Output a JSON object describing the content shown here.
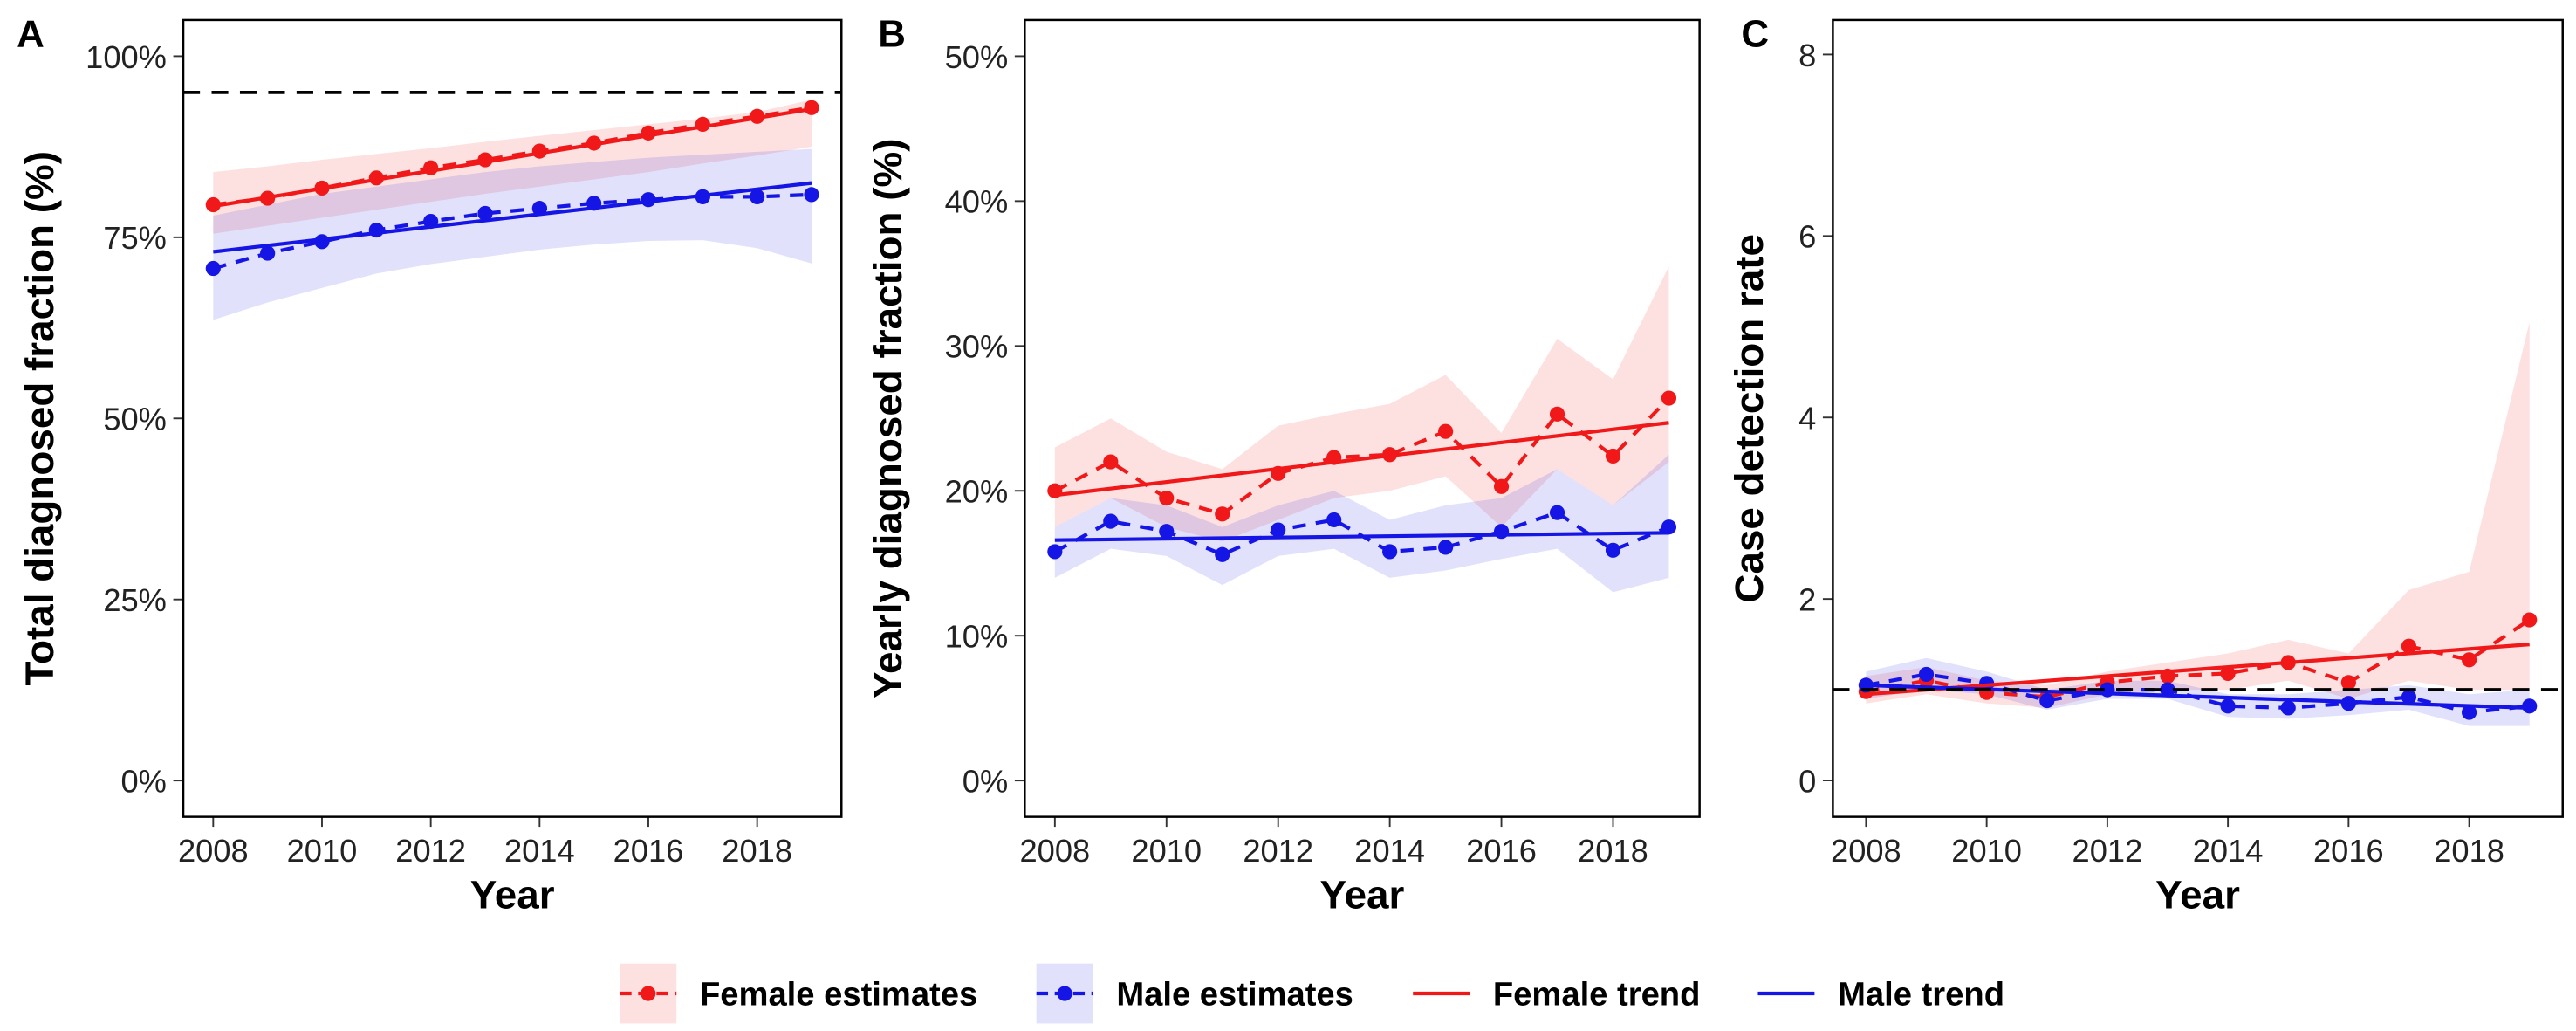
{
  "chart_data": [
    {
      "type": "line",
      "panel_label": "A",
      "xlabel": "Year",
      "ylabel": "Total diagnosed fraction  (%)",
      "x": [
        2008,
        2009,
        2010,
        2011,
        2012,
        2013,
        2014,
        2015,
        2016,
        2017,
        2018,
        2019
      ],
      "xlim": [
        2007.45,
        2019.55
      ],
      "xticks": [
        2008,
        2010,
        2012,
        2014,
        2016,
        2018
      ],
      "ylim": [
        -5,
        105
      ],
      "yticks": [
        {
          "value": 0,
          "label": "0%"
        },
        {
          "value": 25,
          "label": "25%"
        },
        {
          "value": 50,
          "label": "50%"
        },
        {
          "value": 75,
          "label": "75%"
        },
        {
          "value": 100,
          "label": "100%"
        }
      ],
      "hline": 95,
      "series": [
        {
          "name": "Female estimates",
          "color": "#f01818",
          "values": [
            79.5,
            80.4,
            81.8,
            83.2,
            84.6,
            85.7,
            86.9,
            88,
            89.4,
            90.6,
            91.7,
            92.9
          ],
          "lower": [
            75.5,
            76.6,
            77.7,
            78.8,
            79.9,
            81,
            82,
            83,
            84,
            85.2,
            86.3,
            87.5
          ],
          "upper": [
            84,
            84.8,
            85.7,
            86.5,
            87.3,
            88.2,
            89,
            89.8,
            90.6,
            91.4,
            92.3,
            94
          ]
        },
        {
          "name": "Male estimates",
          "color": "#1515e6",
          "values": [
            70.7,
            72.8,
            74.4,
            76,
            77.2,
            78.3,
            79,
            79.7,
            80.2,
            80.6,
            80.6,
            80.9
          ],
          "lower": [
            63.6,
            66,
            68,
            70,
            71.3,
            72.3,
            73.3,
            74,
            74.5,
            74.6,
            73.5,
            71.4
          ],
          "upper": [
            78,
            79.5,
            81,
            82,
            83,
            84,
            84.8,
            85.4,
            86,
            86.4,
            86.8,
            87.2
          ]
        },
        {
          "name": "Female trend",
          "color": "#f01818",
          "x": [
            2008,
            2019
          ],
          "values": [
            79.3,
            92.7
          ]
        },
        {
          "name": "Male trend",
          "color": "#1515e6",
          "x": [
            2008,
            2019
          ],
          "values": [
            73,
            82.5
          ]
        }
      ]
    },
    {
      "type": "line",
      "panel_label": "B",
      "xlabel": "Year",
      "ylabel": "Yearly diagnosed fraction (%)",
      "x": [
        2008,
        2009,
        2010,
        2011,
        2012,
        2013,
        2014,
        2015,
        2016,
        2017,
        2018,
        2019
      ],
      "xlim": [
        2007.46,
        2019.55
      ],
      "xticks": [
        2008,
        2010,
        2012,
        2014,
        2016,
        2018
      ],
      "ylim": [
        -2.5,
        52.5
      ],
      "yticks": [
        {
          "value": 0,
          "label": "0%"
        },
        {
          "value": 10,
          "label": "10%"
        },
        {
          "value": 20,
          "label": "20%"
        },
        {
          "value": 30,
          "label": "30%"
        },
        {
          "value": 40,
          "label": "40%"
        },
        {
          "value": 50,
          "label": "50%"
        }
      ],
      "series": [
        {
          "color": "#f01818",
          "values": [
            20,
            22,
            19.5,
            18.4,
            21.2,
            22.3,
            22.5,
            24.1,
            20.3,
            25.3,
            22.4,
            26.4
          ],
          "lower": [
            17.5,
            19.5,
            17.5,
            16.5,
            18,
            19.5,
            20,
            21,
            17.5,
            21.5,
            19,
            22
          ],
          "upper": [
            23,
            25,
            22.7,
            21.5,
            24.5,
            25.3,
            26,
            28,
            24,
            30.5,
            27.7,
            35.5
          ]
        },
        {
          "color": "#1515e6",
          "values": [
            15.8,
            17.9,
            17.2,
            15.6,
            17.3,
            18,
            15.8,
            16.1,
            17.2,
            18.5,
            15.9,
            17.5
          ],
          "lower": [
            14,
            16,
            15.5,
            13.5,
            15.5,
            16,
            14,
            14.5,
            15.3,
            16,
            13,
            14
          ],
          "upper": [
            17.5,
            19.5,
            19,
            17.5,
            19,
            20,
            18,
            19,
            19.5,
            21.5,
            19,
            22.5
          ]
        },
        {
          "color": "#f01818",
          "x": [
            2008,
            2019
          ],
          "values": [
            19.7,
            24.7
          ]
        },
        {
          "color": "#1515e6",
          "x": [
            2008,
            2019
          ],
          "values": [
            16.6,
            17.1
          ]
        }
      ]
    },
    {
      "type": "line",
      "panel_label": "C",
      "xlabel": "Year",
      "ylabel": "Case detection rate",
      "x": [
        2008,
        2009,
        2010,
        2011,
        2012,
        2013,
        2014,
        2015,
        2016,
        2017,
        2018,
        2019
      ],
      "xlim": [
        2007.45,
        2019.55
      ],
      "xticks": [
        2008,
        2010,
        2012,
        2014,
        2016,
        2018
      ],
      "ylim": [
        -0.4,
        8.38
      ],
      "yticks": [
        0,
        2,
        4,
        6,
        8
      ],
      "hline": 1,
      "series": [
        {
          "color": "#f01818",
          "values": [
            0.98,
            1.1,
            0.97,
            0.92,
            1.08,
            1.15,
            1.18,
            1.3,
            1.08,
            1.48,
            1.33,
            1.77
          ],
          "lower": [
            0.85,
            0.95,
            0.85,
            0.8,
            0.95,
            1,
            1,
            1.1,
            0.9,
            1.1,
            1,
            1
          ],
          "upper": [
            1.15,
            1.25,
            1.1,
            1.05,
            1.2,
            1.3,
            1.4,
            1.55,
            1.4,
            2.1,
            2.3,
            5.05
          ]
        },
        {
          "color": "#1515e6",
          "values": [
            1.05,
            1.17,
            1.07,
            0.88,
            1,
            1,
            0.82,
            0.8,
            0.85,
            0.92,
            0.75,
            0.82
          ],
          "lower": [
            0.9,
            1,
            0.95,
            0.78,
            0.9,
            0.9,
            0.7,
            0.68,
            0.72,
            0.78,
            0.6,
            0.6
          ],
          "upper": [
            1.2,
            1.35,
            1.2,
            1,
            1.1,
            1.1,
            0.95,
            0.95,
            1,
            1.05,
            0.95,
            1
          ]
        },
        {
          "color": "#f01818",
          "x": [
            2008,
            2019
          ],
          "values": [
            0.95,
            1.5
          ]
        },
        {
          "color": "#1515e6",
          "x": [
            2008,
            2019
          ],
          "values": [
            1.05,
            0.8
          ]
        }
      ]
    }
  ]
}
